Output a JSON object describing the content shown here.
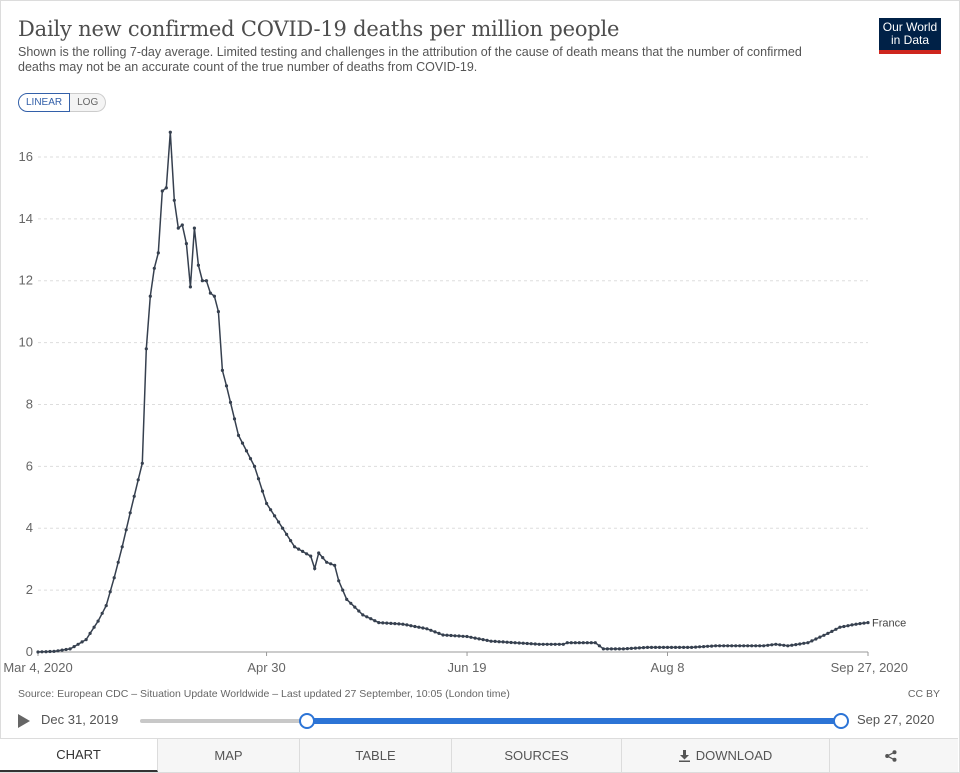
{
  "header": {
    "title": "Daily new confirmed COVID-19 deaths per million people",
    "subtitle": "Shown is the rolling 7-day average. Limited testing and challenges in the attribution of the cause of death means that the number of confirmed deaths may not be an accurate count of the true number of deaths from COVID-19.",
    "logo_line1": "Our World",
    "logo_line2": "in Data"
  },
  "scale_toggle": {
    "linear": "LINEAR",
    "log": "LOG",
    "selected": "LINEAR"
  },
  "footer": {
    "source": "Source: European CDC – Situation Update Worldwide – Last updated 27 September, 10:05 (London time)",
    "license": "CC BY"
  },
  "timeline": {
    "start_label": "Dec 31, 2019",
    "end_label": "Sep 27, 2020",
    "selected_start": "Mar 4, 2020",
    "selected_end": "Sep 27, 2020"
  },
  "tabs": [
    "CHART",
    "MAP",
    "TABLE",
    "SOURCES",
    "DOWNLOAD",
    ""
  ],
  "colors": {
    "line": "#36404f",
    "grid": "#dddddd",
    "accent": "#2c74d6",
    "logo_bg": "#002147",
    "logo_bar": "#ce261e"
  },
  "icons": {
    "download": "download-icon",
    "share": "share-icon",
    "play": "play-icon"
  },
  "chart_data": {
    "type": "line",
    "title": "Daily new confirmed COVID-19 deaths per million people",
    "scale": "linear",
    "grid": true,
    "ylim": [
      0,
      17
    ],
    "y_ticks": [
      0,
      2,
      4,
      6,
      8,
      10,
      12,
      14,
      16
    ],
    "x_ticks": [
      "Mar 4, 2020",
      "Apr 30",
      "Jun 19",
      "Aug 8",
      "Sep 27, 2020"
    ],
    "x_range": [
      "2020-03-04",
      "2020-09-27"
    ],
    "series": [
      {
        "name": "France",
        "anchors": [
          [
            "2020-03-04",
            0.0
          ],
          [
            "2020-03-08",
            0.02
          ],
          [
            "2020-03-12",
            0.1
          ],
          [
            "2020-03-16",
            0.4
          ],
          [
            "2020-03-19",
            1.0
          ],
          [
            "2020-03-21",
            1.5
          ],
          [
            "2020-03-23",
            2.4
          ],
          [
            "2020-03-25",
            3.4
          ],
          [
            "2020-03-27",
            4.5
          ],
          [
            "2020-03-30",
            6.1
          ],
          [
            "2020-03-31",
            9.8
          ],
          [
            "2020-04-01",
            11.5
          ],
          [
            "2020-04-02",
            12.4
          ],
          [
            "2020-04-03",
            12.9
          ],
          [
            "2020-04-04",
            14.9
          ],
          [
            "2020-04-05",
            15.0
          ],
          [
            "2020-04-06",
            16.8
          ],
          [
            "2020-04-07",
            14.6
          ],
          [
            "2020-04-08",
            13.7
          ],
          [
            "2020-04-09",
            13.8
          ],
          [
            "2020-04-10",
            13.2
          ],
          [
            "2020-04-11",
            11.8
          ],
          [
            "2020-04-12",
            13.7
          ],
          [
            "2020-04-13",
            12.5
          ],
          [
            "2020-04-14",
            12.0
          ],
          [
            "2020-04-15",
            12.0
          ],
          [
            "2020-04-16",
            11.6
          ],
          [
            "2020-04-17",
            11.5
          ],
          [
            "2020-04-18",
            11.0
          ],
          [
            "2020-04-19",
            9.1
          ],
          [
            "2020-04-20",
            8.6
          ],
          [
            "2020-04-23",
            7.0
          ],
          [
            "2020-04-27",
            6.0
          ],
          [
            "2020-04-30",
            4.8
          ],
          [
            "2020-05-04",
            4.0
          ],
          [
            "2020-05-07",
            3.4
          ],
          [
            "2020-05-11",
            3.1
          ],
          [
            "2020-05-12",
            2.7
          ],
          [
            "2020-05-13",
            3.2
          ],
          [
            "2020-05-15",
            2.9
          ],
          [
            "2020-05-17",
            2.8
          ],
          [
            "2020-05-18",
            2.3
          ],
          [
            "2020-05-20",
            1.7
          ],
          [
            "2020-05-24",
            1.2
          ],
          [
            "2020-05-28",
            0.95
          ],
          [
            "2020-06-03",
            0.9
          ],
          [
            "2020-06-09",
            0.75
          ],
          [
            "2020-06-13",
            0.55
          ],
          [
            "2020-06-19",
            0.5
          ],
          [
            "2020-06-25",
            0.35
          ],
          [
            "2020-07-01",
            0.3
          ],
          [
            "2020-07-07",
            0.25
          ],
          [
            "2020-07-13",
            0.25
          ],
          [
            "2020-07-14",
            0.3
          ],
          [
            "2020-07-21",
            0.3
          ],
          [
            "2020-07-23",
            0.1
          ],
          [
            "2020-07-28",
            0.1
          ],
          [
            "2020-08-03",
            0.15
          ],
          [
            "2020-08-08",
            0.15
          ],
          [
            "2020-08-14",
            0.15
          ],
          [
            "2020-08-20",
            0.2
          ],
          [
            "2020-08-26",
            0.2
          ],
          [
            "2020-09-01",
            0.2
          ],
          [
            "2020-09-04",
            0.25
          ],
          [
            "2020-09-07",
            0.2
          ],
          [
            "2020-09-12",
            0.3
          ],
          [
            "2020-09-17",
            0.6
          ],
          [
            "2020-09-20",
            0.8
          ],
          [
            "2020-09-24",
            0.9
          ],
          [
            "2020-09-27",
            0.95
          ]
        ]
      }
    ]
  }
}
